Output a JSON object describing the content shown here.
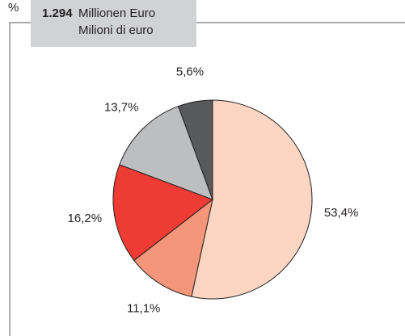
{
  "chart_data": {
    "type": "pie",
    "unit": "%",
    "total": "1.294",
    "title": "Millionen Euro",
    "subtitle": "Milioni di euro",
    "values": [
      53.4,
      11.1,
      16.2,
      13.7,
      5.6
    ],
    "value_labels": [
      "53,4%",
      "11,1%",
      "16,2%",
      "13,7%",
      "5,6%"
    ],
    "colors": [
      "#fdd5c3",
      "#f4967a",
      "#ee3b33",
      "#bdbec0",
      "#58595b"
    ]
  }
}
